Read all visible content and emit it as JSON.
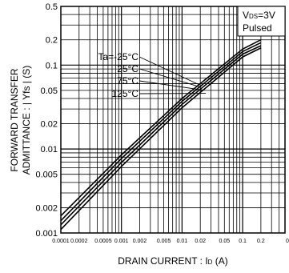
{
  "chart_data": {
    "type": "line",
    "xlabel": "DRAIN CURRENT : I",
    "xlabel_sub": "D",
    "xlabel_unit": "(A)",
    "ylabel_line1": "FORWARD TRANSFER",
    "ylabel_line2": "ADMITTANCE : | Yfs | (S)",
    "x_scale": "log",
    "y_scale": "log",
    "xlim": [
      0.0001,
      0.2
    ],
    "ylim": [
      0.001,
      0.5
    ],
    "x_ticks": [
      {
        "v": 0.0001,
        "label": "0.0001"
      },
      {
        "v": 0.0002,
        "label": "0.0002"
      },
      {
        "v": 0.0005,
        "label": "0.0005"
      },
      {
        "v": 0.001,
        "label": "0.001"
      },
      {
        "v": 0.002,
        "label": "0.002"
      },
      {
        "v": 0.005,
        "label": "0.005"
      },
      {
        "v": 0.01,
        "label": "0.01"
      },
      {
        "v": 0.02,
        "label": "0.02"
      },
      {
        "v": 0.05,
        "label": "0.05"
      },
      {
        "v": 0.1,
        "label": "0.1"
      },
      {
        "v": 0.2,
        "label": "0.2"
      }
    ],
    "x_tick_cut": "0.",
    "y_ticks": [
      {
        "v": 0.5,
        "label": "0.5"
      },
      {
        "v": 0.2,
        "label": "0.2"
      },
      {
        "v": 0.1,
        "label": "0.1"
      },
      {
        "v": 0.05,
        "label": "0.05"
      },
      {
        "v": 0.02,
        "label": "0.02"
      },
      {
        "v": 0.01,
        "label": "0.01"
      },
      {
        "v": 0.005,
        "label": "0.005"
      },
      {
        "v": 0.002,
        "label": "0.002"
      },
      {
        "v": 0.001,
        "label": "0.001"
      }
    ],
    "grid": true,
    "legend_box": {
      "line1_main": "V",
      "line1_sub": "DS",
      "line1_rest": "=3V",
      "line2": "Pulsed",
      "placement": "top-right"
    },
    "series": [
      {
        "name": "Ta=-25°C",
        "x": [
          0.0001,
          0.001,
          0.01,
          0.1,
          0.2
        ],
        "y": [
          0.0016,
          0.0085,
          0.04,
          0.155,
          0.2
        ]
      },
      {
        "name": "25°C",
        "x": [
          0.0001,
          0.001,
          0.01,
          0.1,
          0.2
        ],
        "y": [
          0.0014,
          0.0077,
          0.037,
          0.145,
          0.185
        ]
      },
      {
        "name": "75°C",
        "x": [
          0.0001,
          0.001,
          0.01,
          0.1,
          0.2
        ],
        "y": [
          0.00125,
          0.0069,
          0.034,
          0.135,
          0.17
        ]
      },
      {
        "name": "125°C",
        "x": [
          0.0001,
          0.001,
          0.01,
          0.1,
          0.2
        ],
        "y": [
          0.0011,
          0.0062,
          0.031,
          0.125,
          0.16
        ]
      }
    ]
  }
}
